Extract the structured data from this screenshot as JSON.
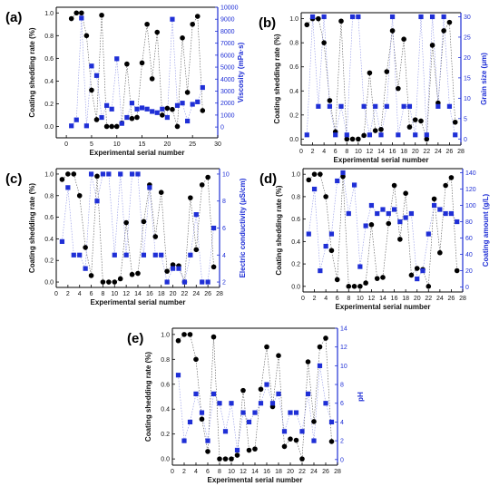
{
  "chart_data": [
    {
      "type": "scatter",
      "panel_label": "(a)",
      "xlabel": "Experimental serial number",
      "ylabel_left": "Coating shedding rate (%)",
      "ylabel_right": "Viscosity (mPa·s)",
      "xlim": [
        -2,
        30
      ],
      "xticks": [
        0,
        5,
        10,
        15,
        20,
        25,
        30
      ],
      "ylim_left": [
        -0.1,
        1.05
      ],
      "yticks_left": [
        0.0,
        0.2,
        0.4,
        0.6,
        0.8,
        1.0
      ],
      "ylim_right": [
        -900,
        10000
      ],
      "yticks_right": [
        0,
        1000,
        2000,
        3000,
        4000,
        5000,
        6000,
        7000,
        8000,
        9000,
        10000
      ],
      "left_axis_color": "#000000",
      "right_axis_color": "#1f2fd6",
      "x": [
        1,
        2,
        3,
        4,
        5,
        6,
        7,
        8,
        9,
        10,
        11,
        12,
        13,
        14,
        15,
        16,
        17,
        18,
        19,
        20,
        21,
        22,
        23,
        24,
        25,
        26,
        27
      ],
      "series": [
        {
          "axis": "left",
          "marker": "circle",
          "color": "#000000",
          "values": [
            0.95,
            1.0,
            1.0,
            0.8,
            0.32,
            0.06,
            0.98,
            0.0,
            0.0,
            0.0,
            0.03,
            0.55,
            0.07,
            0.08,
            0.56,
            0.9,
            0.42,
            0.83,
            0.1,
            0.16,
            0.15,
            0.0,
            0.78,
            0.3,
            0.9,
            0.97,
            0.14
          ]
        },
        {
          "axis": "right",
          "marker": "square",
          "color": "#1f2fd6",
          "values": [
            100,
            600,
            9100,
            100,
            5100,
            4300,
            800,
            1800,
            1500,
            5700,
            300,
            800,
            2000,
            1500,
            1600,
            1500,
            1300,
            1200,
            1500,
            800,
            9000,
            1800,
            2000,
            500,
            1900,
            2100,
            3300
          ]
        }
      ]
    },
    {
      "type": "scatter",
      "panel_label": "(b)",
      "xlabel": "Experimental serial number",
      "ylabel_left": "Coating shedding rate (%)",
      "ylabel_right": "Grain size (μm)",
      "xlim": [
        0,
        28
      ],
      "xticks": [
        0,
        2,
        4,
        6,
        8,
        10,
        12,
        14,
        16,
        18,
        20,
        22,
        24,
        26,
        28
      ],
      "ylim_left": [
        -0.05,
        1.05
      ],
      "yticks_left": [
        0.0,
        0.2,
        0.4,
        0.6,
        0.8,
        1.0
      ],
      "ylim_right": [
        -1.5,
        31
      ],
      "yticks_right": [
        0,
        5,
        10,
        15,
        20,
        25,
        30
      ],
      "left_axis_color": "#000000",
      "right_axis_color": "#1f2fd6",
      "x": [
        1,
        2,
        3,
        4,
        5,
        6,
        7,
        8,
        9,
        10,
        11,
        12,
        13,
        14,
        15,
        16,
        17,
        18,
        19,
        20,
        21,
        22,
        23,
        24,
        25,
        26,
        27
      ],
      "series": [
        {
          "axis": "left",
          "marker": "circle",
          "color": "#000000",
          "values": [
            0.95,
            1.0,
            1.0,
            0.8,
            0.32,
            0.06,
            0.98,
            0.0,
            0.0,
            0.0,
            0.03,
            0.55,
            0.07,
            0.08,
            0.56,
            0.9,
            0.42,
            0.83,
            0.1,
            0.16,
            0.15,
            0.0,
            0.78,
            0.3,
            0.9,
            0.97,
            0.14
          ]
        },
        {
          "axis": "right",
          "marker": "square",
          "color": "#1f2fd6",
          "values": [
            1,
            30,
            8,
            30,
            8,
            1,
            8,
            1,
            30,
            30,
            8,
            1,
            8,
            1,
            8,
            30,
            1,
            8,
            8,
            1,
            30,
            1,
            30,
            8,
            30,
            8,
            1
          ]
        }
      ]
    },
    {
      "type": "scatter",
      "panel_label": "(c)",
      "xlabel": "Experimental serial number",
      "ylabel_left": "Coating shedding rate (%)",
      "ylabel_right": "Electric conductivity (μS/cm)",
      "xlim": [
        0,
        28
      ],
      "xticks": [
        0,
        2,
        4,
        6,
        8,
        10,
        12,
        14,
        16,
        18,
        20,
        22,
        24,
        26,
        28
      ],
      "ylim_left": [
        -0.05,
        1.05
      ],
      "yticks_left": [
        0.0,
        0.2,
        0.4,
        0.6,
        0.8,
        1.0
      ],
      "ylim_right": [
        1.6,
        10.4
      ],
      "yticks_right": [
        2,
        4,
        6,
        8,
        10
      ],
      "left_axis_color": "#000000",
      "right_axis_color": "#1f2fd6",
      "x": [
        1,
        2,
        3,
        4,
        5,
        6,
        7,
        8,
        9,
        10,
        11,
        12,
        13,
        14,
        15,
        16,
        17,
        18,
        19,
        20,
        21,
        22,
        23,
        24,
        25,
        26,
        27
      ],
      "series": [
        {
          "axis": "left",
          "marker": "circle",
          "color": "#000000",
          "values": [
            0.95,
            1.0,
            1.0,
            0.8,
            0.32,
            0.06,
            0.98,
            0.0,
            0.0,
            0.0,
            0.03,
            0.55,
            0.07,
            0.08,
            0.56,
            0.9,
            0.42,
            0.83,
            0.1,
            0.16,
            0.15,
            0.0,
            0.78,
            0.3,
            0.9,
            0.97,
            0.14
          ]
        },
        {
          "axis": "right",
          "marker": "square",
          "color": "#1f2fd6",
          "values": [
            5,
            9,
            4,
            4,
            3,
            10,
            8,
            10,
            10,
            4,
            10,
            4,
            10,
            10,
            4,
            9,
            4,
            4,
            2,
            3,
            3,
            2,
            4,
            7,
            2,
            2,
            6
          ]
        }
      ]
    },
    {
      "type": "scatter",
      "panel_label": "(d)",
      "xlabel": "Experimental serial number",
      "ylabel_left": "Coating shedding rate (%)",
      "ylabel_right": "Coating amount (g/L)",
      "xlim": [
        0,
        28
      ],
      "xticks": [
        0,
        2,
        4,
        6,
        8,
        10,
        12,
        14,
        16,
        18,
        20,
        22,
        24,
        26,
        28
      ],
      "ylim_left": [
        -0.05,
        1.05
      ],
      "yticks_left": [
        0.0,
        0.2,
        0.4,
        0.6,
        0.8,
        1.0
      ],
      "ylim_right": [
        -6,
        145
      ],
      "yticks_right": [
        0,
        20,
        40,
        60,
        80,
        100,
        120,
        140
      ],
      "left_axis_color": "#000000",
      "right_axis_color": "#1f2fd6",
      "x": [
        1,
        2,
        3,
        4,
        5,
        6,
        7,
        8,
        9,
        10,
        11,
        12,
        13,
        14,
        15,
        16,
        17,
        18,
        19,
        20,
        21,
        22,
        23,
        24,
        25,
        26,
        27
      ],
      "series": [
        {
          "axis": "left",
          "marker": "circle",
          "color": "#000000",
          "values": [
            0.95,
            1.0,
            1.0,
            0.8,
            0.32,
            0.06,
            0.98,
            0.0,
            0.0,
            0.0,
            0.03,
            0.55,
            0.07,
            0.08,
            0.56,
            0.9,
            0.42,
            0.83,
            0.1,
            0.16,
            0.15,
            0.0,
            0.78,
            0.3,
            0.9,
            0.97,
            0.14
          ]
        },
        {
          "axis": "right",
          "marker": "square",
          "color": "#1f2fd6",
          "values": [
            65,
            120,
            20,
            50,
            65,
            130,
            140,
            90,
            125,
            25,
            75,
            100,
            90,
            95,
            90,
            95,
            80,
            85,
            90,
            10,
            20,
            65,
            100,
            95,
            90,
            90,
            80
          ]
        }
      ]
    },
    {
      "type": "scatter",
      "panel_label": "(e)",
      "xlabel": "Experimental serial number",
      "ylabel_left": "Coating shedding rate (%)",
      "ylabel_right": "pH",
      "xlim": [
        0,
        28
      ],
      "xticks": [
        0,
        2,
        4,
        6,
        8,
        10,
        12,
        14,
        16,
        18,
        20,
        22,
        24,
        26,
        28
      ],
      "ylim_left": [
        -0.05,
        1.05
      ],
      "yticks_left": [
        0.0,
        0.2,
        0.4,
        0.6,
        0.8,
        1.0
      ],
      "ylim_right": [
        -0.6,
        14
      ],
      "yticks_right": [
        0,
        2,
        4,
        6,
        8,
        10,
        12,
        14
      ],
      "left_axis_color": "#000000",
      "right_axis_color": "#1f2fd6",
      "x": [
        1,
        2,
        3,
        4,
        5,
        6,
        7,
        8,
        9,
        10,
        11,
        12,
        13,
        14,
        15,
        16,
        17,
        18,
        19,
        20,
        21,
        22,
        23,
        24,
        25,
        26,
        27
      ],
      "series": [
        {
          "axis": "left",
          "marker": "circle",
          "color": "#000000",
          "values": [
            0.95,
            1.0,
            1.0,
            0.8,
            0.32,
            0.06,
            0.98,
            0.0,
            0.0,
            0.0,
            0.03,
            0.55,
            0.07,
            0.08,
            0.56,
            0.9,
            0.42,
            0.83,
            0.1,
            0.16,
            0.15,
            0.0,
            0.78,
            0.3,
            0.9,
            0.97,
            0.14
          ]
        },
        {
          "axis": "right",
          "marker": "square",
          "color": "#1f2fd6",
          "values": [
            9,
            2,
            4,
            7,
            5,
            2,
            7,
            6,
            3,
            6,
            1,
            5,
            4,
            5,
            6,
            8,
            6,
            7,
            3,
            5,
            5,
            3,
            7,
            2,
            10,
            6,
            4
          ]
        }
      ]
    }
  ]
}
